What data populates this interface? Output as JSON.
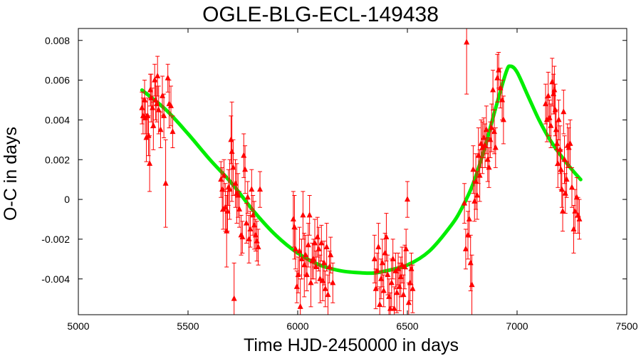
{
  "chart_data": {
    "type": "scatter",
    "title": "OGLE-BLG-ECL-149438",
    "xlabel": "Time HJD-2450000 in days",
    "ylabel": "O-C in days",
    "xlim": [
      5000,
      7500
    ],
    "ylim": [
      -0.0058,
      0.0086
    ],
    "x_ticks": [
      "5000",
      "5500",
      "6000",
      "6500",
      "7000",
      "7500"
    ],
    "y_ticks": [
      "-0.004",
      "-0.002",
      "0",
      "0.002",
      "0.004",
      "0.006",
      "0.008"
    ],
    "grid": false,
    "legend": "none",
    "colors": {
      "points": "#ff0000",
      "fit": "#00ee00",
      "axes": "#000000"
    },
    "series": [
      {
        "kind": "points-with-error-bars",
        "marker": "triangle",
        "points": [
          [
            5290,
            0.0046,
            0.0008
          ],
          [
            5295,
            0.0042,
            0.0009
          ],
          [
            5302,
            0.005,
            0.001
          ],
          [
            5305,
            0.0041,
            0.0008
          ],
          [
            5310,
            0.0031,
            0.0012
          ],
          [
            5316,
            0.0042,
            0.0009
          ],
          [
            5320,
            0.0032,
            0.001
          ],
          [
            5325,
            0.0018,
            0.0014
          ],
          [
            5328,
            0.0055,
            0.0008
          ],
          [
            5332,
            0.0051,
            0.0012
          ],
          [
            5338,
            0.0046,
            0.001
          ],
          [
            5342,
            0.0037,
            0.0012
          ],
          [
            5348,
            0.006,
            0.0008
          ],
          [
            5352,
            0.005,
            0.001
          ],
          [
            5357,
            0.0048,
            0.0009
          ],
          [
            5361,
            0.0062,
            0.001
          ],
          [
            5366,
            0.0045,
            0.0012
          ],
          [
            5375,
            0.0035,
            0.0009
          ],
          [
            5383,
            0.0052,
            0.001
          ],
          [
            5390,
            0.0042,
            0.0011
          ],
          [
            5398,
            0.0008,
            0.0022
          ],
          [
            5408,
            0.0061,
            0.0007
          ],
          [
            5414,
            0.0048,
            0.0012
          ],
          [
            5422,
            0.0047,
            0.001
          ],
          [
            5430,
            0.0034,
            0.0008
          ],
          [
            5650,
            0.001,
            0.0009
          ],
          [
            5656,
            0.0005,
            0.0011
          ],
          [
            5660,
            -0.0005,
            0.001
          ],
          [
            5664,
            0.0012,
            0.0008
          ],
          [
            5670,
            -0.0004,
            0.0012
          ],
          [
            5676,
            -0.0016,
            0.0018
          ],
          [
            5680,
            -0.0006,
            0.001
          ],
          [
            5684,
            0.0006,
            0.0009
          ],
          [
            5690,
            0.0005,
            0.0015
          ],
          [
            5696,
            0.003,
            0.0012
          ],
          [
            5700,
            0.0024,
            0.0025
          ],
          [
            5706,
            0.0016,
            0.0014
          ],
          [
            5710,
            -0.005,
            0.0018
          ],
          [
            5716,
            0.0008,
            0.0012
          ],
          [
            5722,
            0.0003,
            0.0015
          ],
          [
            5728,
            0.0002,
            0.0011
          ],
          [
            5734,
            -0.0005,
            0.0009
          ],
          [
            5742,
            -0.0018,
            0.001
          ],
          [
            5748,
            -0.0019,
            0.0008
          ],
          [
            5754,
            0.0022,
            0.0011
          ],
          [
            5760,
            0.0015,
            0.0012
          ],
          [
            5766,
            -0.0012,
            0.001
          ],
          [
            5772,
            0.0001,
            0.0008
          ],
          [
            5778,
            -0.002,
            0.0012
          ],
          [
            5784,
            -0.0015,
            0.0009
          ],
          [
            5790,
            0.0005,
            0.001
          ],
          [
            5796,
            -0.0008,
            0.001
          ],
          [
            5802,
            -0.0013,
            0.0012
          ],
          [
            5808,
            -0.0018,
            0.0008
          ],
          [
            5814,
            -0.0021,
            0.001
          ],
          [
            5820,
            -0.0024,
            0.0009
          ],
          [
            5828,
            0.0005,
            0.0009
          ],
          [
            5980,
            -0.001,
            0.0014
          ],
          [
            5985,
            -0.0014,
            0.0016
          ],
          [
            5990,
            -0.0025,
            0.001
          ],
          [
            5996,
            -0.0044,
            0.0008
          ],
          [
            6002,
            -0.0038,
            0.0009
          ],
          [
            6008,
            -0.0026,
            0.0012
          ],
          [
            6012,
            -0.0054,
            0.0014
          ],
          [
            6018,
            -0.003,
            0.001
          ],
          [
            6024,
            -0.0008,
            0.0012
          ],
          [
            6030,
            -0.0033,
            0.0016
          ],
          [
            6036,
            -0.0028,
            0.001
          ],
          [
            6042,
            -0.0038,
            0.0008
          ],
          [
            6048,
            -0.0023,
            0.0011
          ],
          [
            6054,
            -0.0008,
            0.001
          ],
          [
            6060,
            -0.0042,
            0.0012
          ],
          [
            6066,
            -0.0031,
            0.0009
          ],
          [
            6072,
            -0.003,
            0.001
          ],
          [
            6078,
            -0.0022,
            0.0012
          ],
          [
            6084,
            -0.0034,
            0.0008
          ],
          [
            6090,
            -0.0019,
            0.001
          ],
          [
            6096,
            -0.0025,
            0.0011
          ],
          [
            6102,
            -0.004,
            0.0012
          ],
          [
            6108,
            -0.0022,
            0.0009
          ],
          [
            6114,
            -0.0041,
            0.001
          ],
          [
            6120,
            -0.0032,
            0.0011
          ],
          [
            6126,
            -0.0045,
            0.0009
          ],
          [
            6132,
            -0.0024,
            0.0012
          ],
          [
            6138,
            -0.0048,
            0.001
          ],
          [
            6145,
            -0.0034,
            0.0008
          ],
          [
            6150,
            -0.0028,
            0.0009
          ],
          [
            6160,
            -0.0042,
            0.001
          ],
          [
            6350,
            -0.003,
            0.0012
          ],
          [
            6356,
            -0.0045,
            0.001
          ],
          [
            6362,
            -0.0036,
            0.0009
          ],
          [
            6368,
            -0.0024,
            0.0012
          ],
          [
            6374,
            -0.0053,
            0.0009
          ],
          [
            6380,
            -0.004,
            0.001
          ],
          [
            6386,
            -0.0032,
            0.0012
          ],
          [
            6392,
            -0.0046,
            0.0008
          ],
          [
            6398,
            -0.0027,
            0.001
          ],
          [
            6404,
            -0.0019,
            0.0012
          ],
          [
            6410,
            -0.0038,
            0.001
          ],
          [
            6416,
            -0.0049,
            0.0009
          ],
          [
            6422,
            -0.0055,
            0.0008
          ],
          [
            6428,
            -0.0042,
            0.0012
          ],
          [
            6434,
            -0.003,
            0.001
          ],
          [
            6440,
            -0.0055,
            0.0011
          ],
          [
            6446,
            -0.0036,
            0.0009
          ],
          [
            6452,
            -0.0047,
            0.001
          ],
          [
            6458,
            -0.0035,
            0.0008
          ],
          [
            6464,
            -0.0044,
            0.0012
          ],
          [
            6470,
            -0.0039,
            0.001
          ],
          [
            6476,
            -0.0033,
            0.0009
          ],
          [
            6482,
            -0.0048,
            0.001
          ],
          [
            6488,
            -0.0034,
            0.0011
          ],
          [
            6494,
            -0.0025,
            0.001
          ],
          [
            6500,
            0.0,
            0.0009
          ],
          [
            6506,
            -0.0052,
            0.001
          ],
          [
            6512,
            -0.0042,
            0.0009
          ],
          [
            6518,
            -0.0035,
            0.0008
          ],
          [
            6524,
            -0.0045,
            0.0012
          ],
          [
            6760,
            -0.0002,
            0.001
          ],
          [
            6766,
            -0.0025,
            0.001
          ],
          [
            6770,
            0.0079,
            0.0026
          ],
          [
            6776,
            -0.0018,
            0.0012
          ],
          [
            6782,
            -0.001,
            0.0009
          ],
          [
            6788,
            -0.0032,
            0.0014
          ],
          [
            6794,
            -0.0043,
            0.0015
          ],
          [
            6800,
            0.0015,
            0.0012
          ],
          [
            6806,
            -0.0001,
            0.001
          ],
          [
            6812,
            0.0009,
            0.0014
          ],
          [
            6818,
            0.0002,
            0.0012
          ],
          [
            6824,
            0.0022,
            0.0014
          ],
          [
            6830,
            0.0012,
            0.0013
          ],
          [
            6836,
            0.0028,
            0.0012
          ],
          [
            6842,
            0.0026,
            0.0013
          ],
          [
            6848,
            0.0031,
            0.001
          ],
          [
            6854,
            0.0027,
            0.0011
          ],
          [
            6860,
            0.0035,
            0.0012
          ],
          [
            6866,
            0.002,
            0.0011
          ],
          [
            6872,
            0.0016,
            0.001
          ],
          [
            6878,
            0.003,
            0.0009
          ],
          [
            6884,
            0.0036,
            0.0012
          ],
          [
            6890,
            0.0055,
            0.001
          ],
          [
            6896,
            0.0034,
            0.0011
          ],
          [
            6902,
            0.0026,
            0.001
          ],
          [
            6910,
            0.0061,
            0.0012
          ],
          [
            6916,
            0.0065,
            0.0009
          ],
          [
            6924,
            0.0056,
            0.001
          ],
          [
            6932,
            0.005,
            0.001
          ],
          [
            6938,
            0.004,
            0.0012
          ],
          [
            7130,
            0.0048,
            0.001
          ],
          [
            7136,
            0.004,
            0.0011
          ],
          [
            7142,
            0.0052,
            0.0012
          ],
          [
            7148,
            0.0041,
            0.0009
          ],
          [
            7154,
            0.0037,
            0.0011
          ],
          [
            7160,
            0.0059,
            0.0012
          ],
          [
            7166,
            0.0053,
            0.001
          ],
          [
            7170,
            0.0055,
            0.0012
          ],
          [
            7174,
            0.0045,
            0.0013
          ],
          [
            7178,
            0.0035,
            0.001
          ],
          [
            7182,
            0.0028,
            0.0011
          ],
          [
            7186,
            0.0018,
            0.0012
          ],
          [
            7190,
            0.004,
            0.001
          ],
          [
            7196,
            0.0025,
            0.0012
          ],
          [
            7200,
            0.0015,
            0.001
          ],
          [
            7204,
            0.0005,
            0.0009
          ],
          [
            7208,
            -0.0006,
            0.001
          ],
          [
            7212,
            0.0044,
            0.0011
          ],
          [
            7216,
            0.002,
            0.0012
          ],
          [
            7220,
            0.0003,
            0.001
          ],
          [
            7226,
            0.001,
            0.0009
          ],
          [
            7230,
            0.0027,
            0.0011
          ],
          [
            7236,
            0.0026,
            0.001
          ],
          [
            7242,
            0.0028,
            0.0012
          ],
          [
            7250,
            0.0006,
            0.001
          ],
          [
            7258,
            -0.0015,
            0.0012
          ],
          [
            7264,
            -0.0006,
            0.0011
          ],
          [
            7272,
            0.0001,
            0.001
          ],
          [
            7278,
            -0.0008,
            0.0009
          ],
          [
            7284,
            -0.001,
            0.001
          ]
        ]
      },
      {
        "kind": "fit-curve",
        "x": [
          5290,
          5400,
          5500,
          5600,
          5700,
          5800,
          5900,
          6000,
          6100,
          6200,
          6300,
          6350,
          6400,
          6500,
          6600,
          6700,
          6750,
          6800,
          6850,
          6900,
          6950,
          6970,
          7000,
          7050,
          7100,
          7150,
          7200,
          7250,
          7290
        ],
        "y": [
          0.0055,
          0.0045,
          0.0033,
          0.002,
          0.0008,
          -0.0006,
          -0.0018,
          -0.0027,
          -0.0033,
          -0.0036,
          -0.0037,
          -0.0037,
          -0.0036,
          -0.0033,
          -0.0026,
          -0.0013,
          -0.0004,
          0.0008,
          0.0025,
          0.0045,
          0.0064,
          0.0067,
          0.0064,
          0.0052,
          0.004,
          0.003,
          0.0022,
          0.0015,
          0.001
        ]
      }
    ]
  }
}
